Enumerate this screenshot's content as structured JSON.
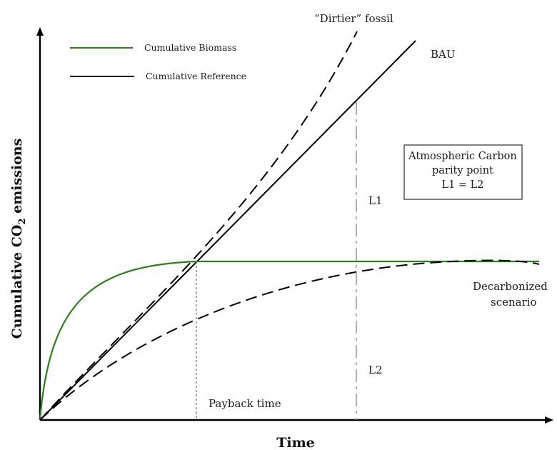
{
  "axes": {
    "x_title": "Time",
    "y_title_main": "Cumulative CO",
    "y_title_sub": "2",
    "y_title_tail": " emissions"
  },
  "legend": {
    "items": [
      {
        "label": "Cumulative Biomass",
        "color": "#2e7d1e",
        "style": "solid"
      },
      {
        "label": "Cumulative Reference",
        "color": "#000000",
        "style": "solid"
      }
    ]
  },
  "curves": {
    "dirtier_fossil": "“Dirtier” fossil",
    "bau": "BAU",
    "decarbonized_line1": "Decarbonized",
    "decarbonized_line2": "scenario"
  },
  "annotations": {
    "payback_time": "Payback time",
    "l1": "L1",
    "l2": "L2"
  },
  "parity_box": {
    "line1": "Atmospheric Carbon",
    "line2": "parity point",
    "line3": "L1 = L2"
  },
  "colors": {
    "biomass": "#2e7d1e",
    "reference": "#000000",
    "guide_grey": "#9a9a9a"
  }
}
